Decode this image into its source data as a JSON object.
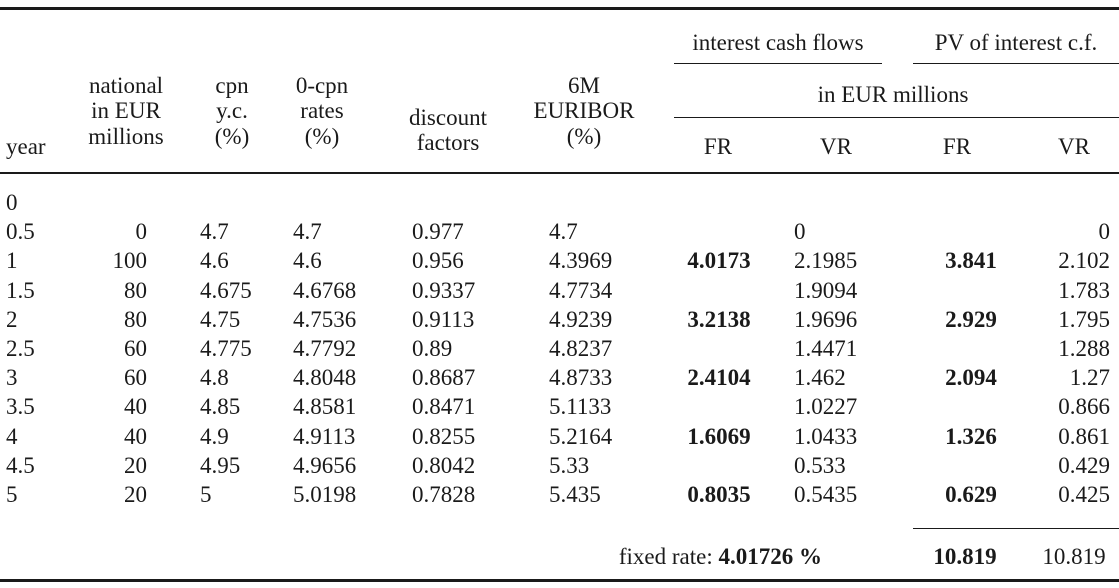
{
  "headers": {
    "year": "year",
    "national": [
      "national",
      "in EUR",
      "millions"
    ],
    "cpn": [
      "cpn",
      "y.c.",
      "(%)"
    ],
    "zero_cpn": [
      "0-cpn",
      "rates",
      "(%)"
    ],
    "discount": [
      "discount",
      "factors"
    ],
    "euribor": [
      "6M",
      "EURIBOR",
      "(%)"
    ],
    "interest_cash_flows": "interest cash flows",
    "pv_interest": "PV of interest c.f.",
    "unit": "in EUR millions",
    "fr": "FR",
    "vr": "VR"
  },
  "rows": [
    {
      "year": "0",
      "national": "",
      "cpn": "",
      "zero": "",
      "df": "",
      "euribor": "",
      "icf_fr": "",
      "icf_vr": "",
      "pv_fr": "",
      "pv_vr": ""
    },
    {
      "year": "0.5",
      "national": "0",
      "cpn": "4.7",
      "zero": "4.7",
      "df": "0.977",
      "euribor": "4.7",
      "icf_fr": "",
      "icf_vr": "0",
      "pv_fr": "",
      "pv_vr": "0"
    },
    {
      "year": "1",
      "national": "100",
      "cpn": "4.6",
      "zero": "4.6",
      "df": "0.956",
      "euribor": "4.3969",
      "icf_fr": "4.0173",
      "icf_vr": "2.1985",
      "pv_fr": "3.841",
      "pv_vr": "2.102"
    },
    {
      "year": "1.5",
      "national": "80",
      "cpn": "4.675",
      "zero": "4.6768",
      "df": "0.9337",
      "euribor": "4.7734",
      "icf_fr": "",
      "icf_vr": "1.9094",
      "pv_fr": "",
      "pv_vr": "1.783"
    },
    {
      "year": "2",
      "national": "80",
      "cpn": "4.75",
      "zero": "4.7536",
      "df": "0.9113",
      "euribor": "4.9239",
      "icf_fr": "3.2138",
      "icf_vr": "1.9696",
      "pv_fr": "2.929",
      "pv_vr": "1.795"
    },
    {
      "year": "2.5",
      "national": "60",
      "cpn": "4.775",
      "zero": "4.7792",
      "df": "0.89",
      "euribor": "4.8237",
      "icf_fr": "",
      "icf_vr": "1.4471",
      "pv_fr": "",
      "pv_vr": "1.288"
    },
    {
      "year": "3",
      "national": "60",
      "cpn": "4.8",
      "zero": "4.8048",
      "df": "0.8687",
      "euribor": "4.8733",
      "icf_fr": "2.4104",
      "icf_vr": "1.462",
      "pv_fr": "2.094",
      "pv_vr": "1.27"
    },
    {
      "year": "3.5",
      "national": "40",
      "cpn": "4.85",
      "zero": "4.8581",
      "df": "0.8471",
      "euribor": "5.1133",
      "icf_fr": "",
      "icf_vr": "1.0227",
      "pv_fr": "",
      "pv_vr": "0.866"
    },
    {
      "year": "4",
      "national": "40",
      "cpn": "4.9",
      "zero": "4.9113",
      "df": "0.8255",
      "euribor": "5.2164",
      "icf_fr": "1.6069",
      "icf_vr": "1.0433",
      "pv_fr": "1.326",
      "pv_vr": "0.861"
    },
    {
      "year": "4.5",
      "national": "20",
      "cpn": "4.95",
      "zero": "4.9656",
      "df": "0.8042",
      "euribor": "5.33",
      "icf_fr": "",
      "icf_vr": "0.533",
      "pv_fr": "",
      "pv_vr": "0.429"
    },
    {
      "year": "5",
      "national": "20",
      "cpn": "5",
      "zero": "5.0198",
      "df": "0.7828",
      "euribor": "5.435",
      "icf_fr": "0.8035",
      "icf_vr": "0.5435",
      "pv_fr": "0.629",
      "pv_vr": "0.425"
    }
  ],
  "footer": {
    "fixed_rate_label": "fixed rate: ",
    "fixed_rate_value": "4.01726 %",
    "pv_fr_total": "10.819",
    "pv_vr_total": "10.819"
  }
}
